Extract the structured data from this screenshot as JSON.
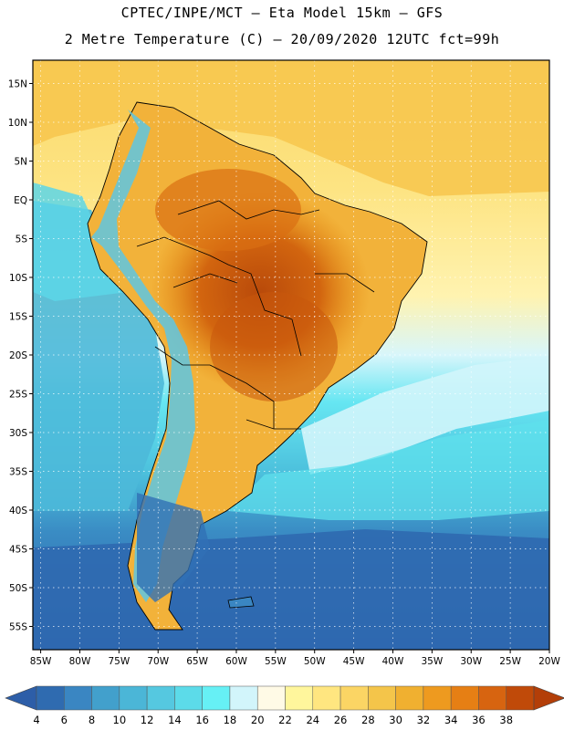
{
  "header": {
    "line1": "CPTEC/INPE/MCT –  Eta Model 15km – GFS",
    "line2": "2 Metre Temperature (C) – 20/09/2020 12UTC fct=99h"
  },
  "map": {
    "region": "South America",
    "lon_range": [
      -86,
      -20
    ],
    "lat_range": [
      18,
      -58
    ],
    "lat_labels": [
      "15N",
      "10N",
      "5N",
      "EQ",
      "5S",
      "10S",
      "15S",
      "20S",
      "25S",
      "30S",
      "35S",
      "40S",
      "45S",
      "50S",
      "55S"
    ],
    "lat_values": [
      15,
      10,
      5,
      0,
      -5,
      -10,
      -15,
      -20,
      -25,
      -30,
      -35,
      -40,
      -45,
      -50,
      -55
    ],
    "lon_labels": [
      "85W",
      "80W",
      "75W",
      "70W",
      "65W",
      "60W",
      "55W",
      "50W",
      "45W",
      "40W",
      "35W",
      "30W",
      "25W",
      "20W"
    ],
    "lon_values": [
      -85,
      -80,
      -75,
      -70,
      -65,
      -60,
      -55,
      -50,
      -45,
      -40,
      -35,
      -30,
      -25,
      -20
    ]
  },
  "colorbar": {
    "labels": [
      "4",
      "6",
      "8",
      "10",
      "12",
      "14",
      "16",
      "18",
      "20",
      "22",
      "24",
      "26",
      "28",
      "30",
      "32",
      "34",
      "36",
      "38"
    ],
    "colors": [
      "#2f6bb0",
      "#3a86c2",
      "#42a0cc",
      "#4bb6d7",
      "#55c8e0",
      "#5cdbe9",
      "#66f0f5",
      "#d2f5fb",
      "#fffae6",
      "#fff69c",
      "#ffe680",
      "#fbd564",
      "#f4c54a",
      "#f0b030",
      "#ee9a1f",
      "#e67f14",
      "#d76410",
      "#c04a09"
    ],
    "under_color": "#2d5ea8",
    "over_color": "#b33e08"
  },
  "colors": {
    "ocean_cold": "#2e62aa",
    "ocean_cool": "#4cb7d8",
    "ocean_mild": "#5ed8e8",
    "ocean_warm": "#ffe27a",
    "land_hot": "#d2680f",
    "land_very_hot": "#bd4f0c",
    "land_warm": "#f0b034",
    "andes": "#5ec6e3",
    "border": "#000000",
    "grid": "#ffffff"
  }
}
